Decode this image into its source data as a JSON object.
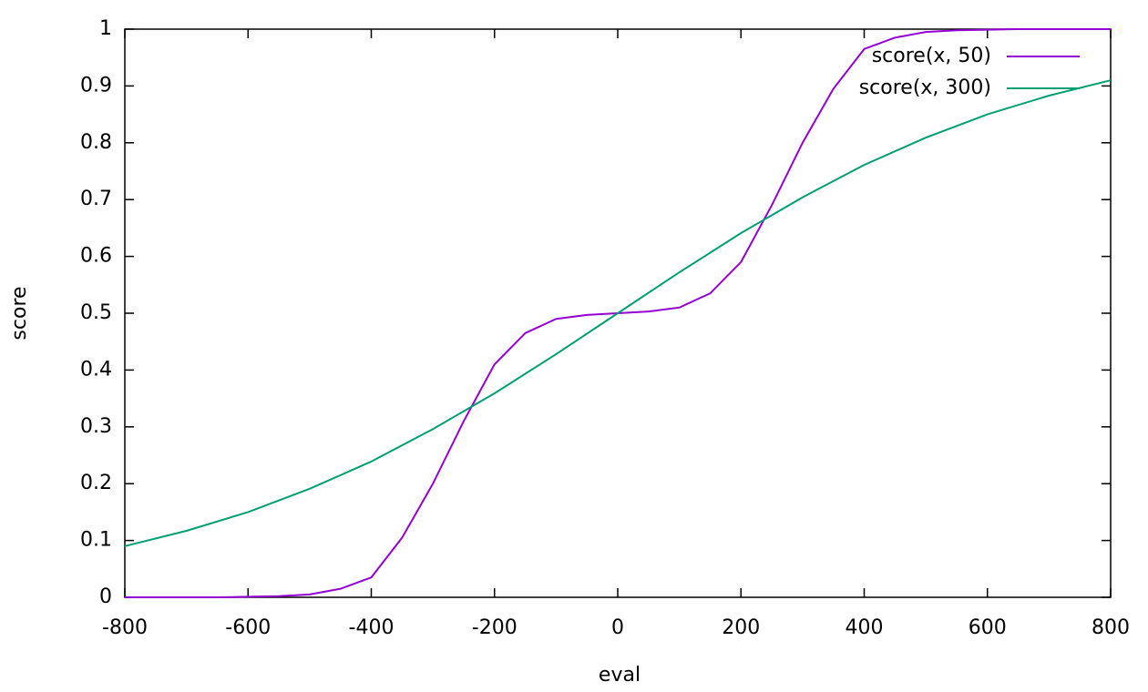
{
  "chart_data": {
    "type": "line",
    "xlabel": "eval",
    "ylabel": "score",
    "xlim": [
      -800,
      800
    ],
    "xticks": [
      -800,
      -600,
      -400,
      -200,
      0,
      200,
      400,
      600,
      800
    ],
    "ylim": [
      0,
      1
    ],
    "yticks": [
      0,
      0.1,
      0.2,
      0.3,
      0.4,
      0.5,
      0.6,
      0.7,
      0.8,
      0.9,
      1
    ],
    "grid": false,
    "legend": "top-right",
    "series": [
      {
        "name": "score(x, 50)",
        "color": "#9400d3",
        "x": [
          -800,
          -750,
          -700,
          -650,
          -600,
          -550,
          -500,
          -450,
          -400,
          -350,
          -300,
          -250,
          -200,
          -150,
          -100,
          -50,
          0,
          50,
          100,
          150,
          200,
          250,
          300,
          350,
          400,
          450,
          500,
          550,
          600,
          650,
          700,
          750,
          800
        ],
        "values": [
          0,
          0,
          0,
          0,
          0.001,
          0.002,
          0.005,
          0.015,
          0.035,
          0.105,
          0.2,
          0.31,
          0.41,
          0.465,
          0.49,
          0.497,
          0.5,
          0.503,
          0.51,
          0.535,
          0.59,
          0.69,
          0.8,
          0.895,
          0.965,
          0.985,
          0.995,
          0.998,
          0.999,
          1,
          1,
          1,
          1
        ]
      },
      {
        "name": "score(x, 300)",
        "color": "#009e73",
        "x": [
          -800,
          -700,
          -600,
          -500,
          -400,
          -300,
          -200,
          -100,
          0,
          100,
          200,
          300,
          400,
          500,
          600,
          700,
          800
        ],
        "values": [
          0.09,
          0.117,
          0.15,
          0.191,
          0.239,
          0.296,
          0.359,
          0.428,
          0.5,
          0.572,
          0.641,
          0.704,
          0.761,
          0.809,
          0.85,
          0.883,
          0.91
        ]
      }
    ]
  }
}
